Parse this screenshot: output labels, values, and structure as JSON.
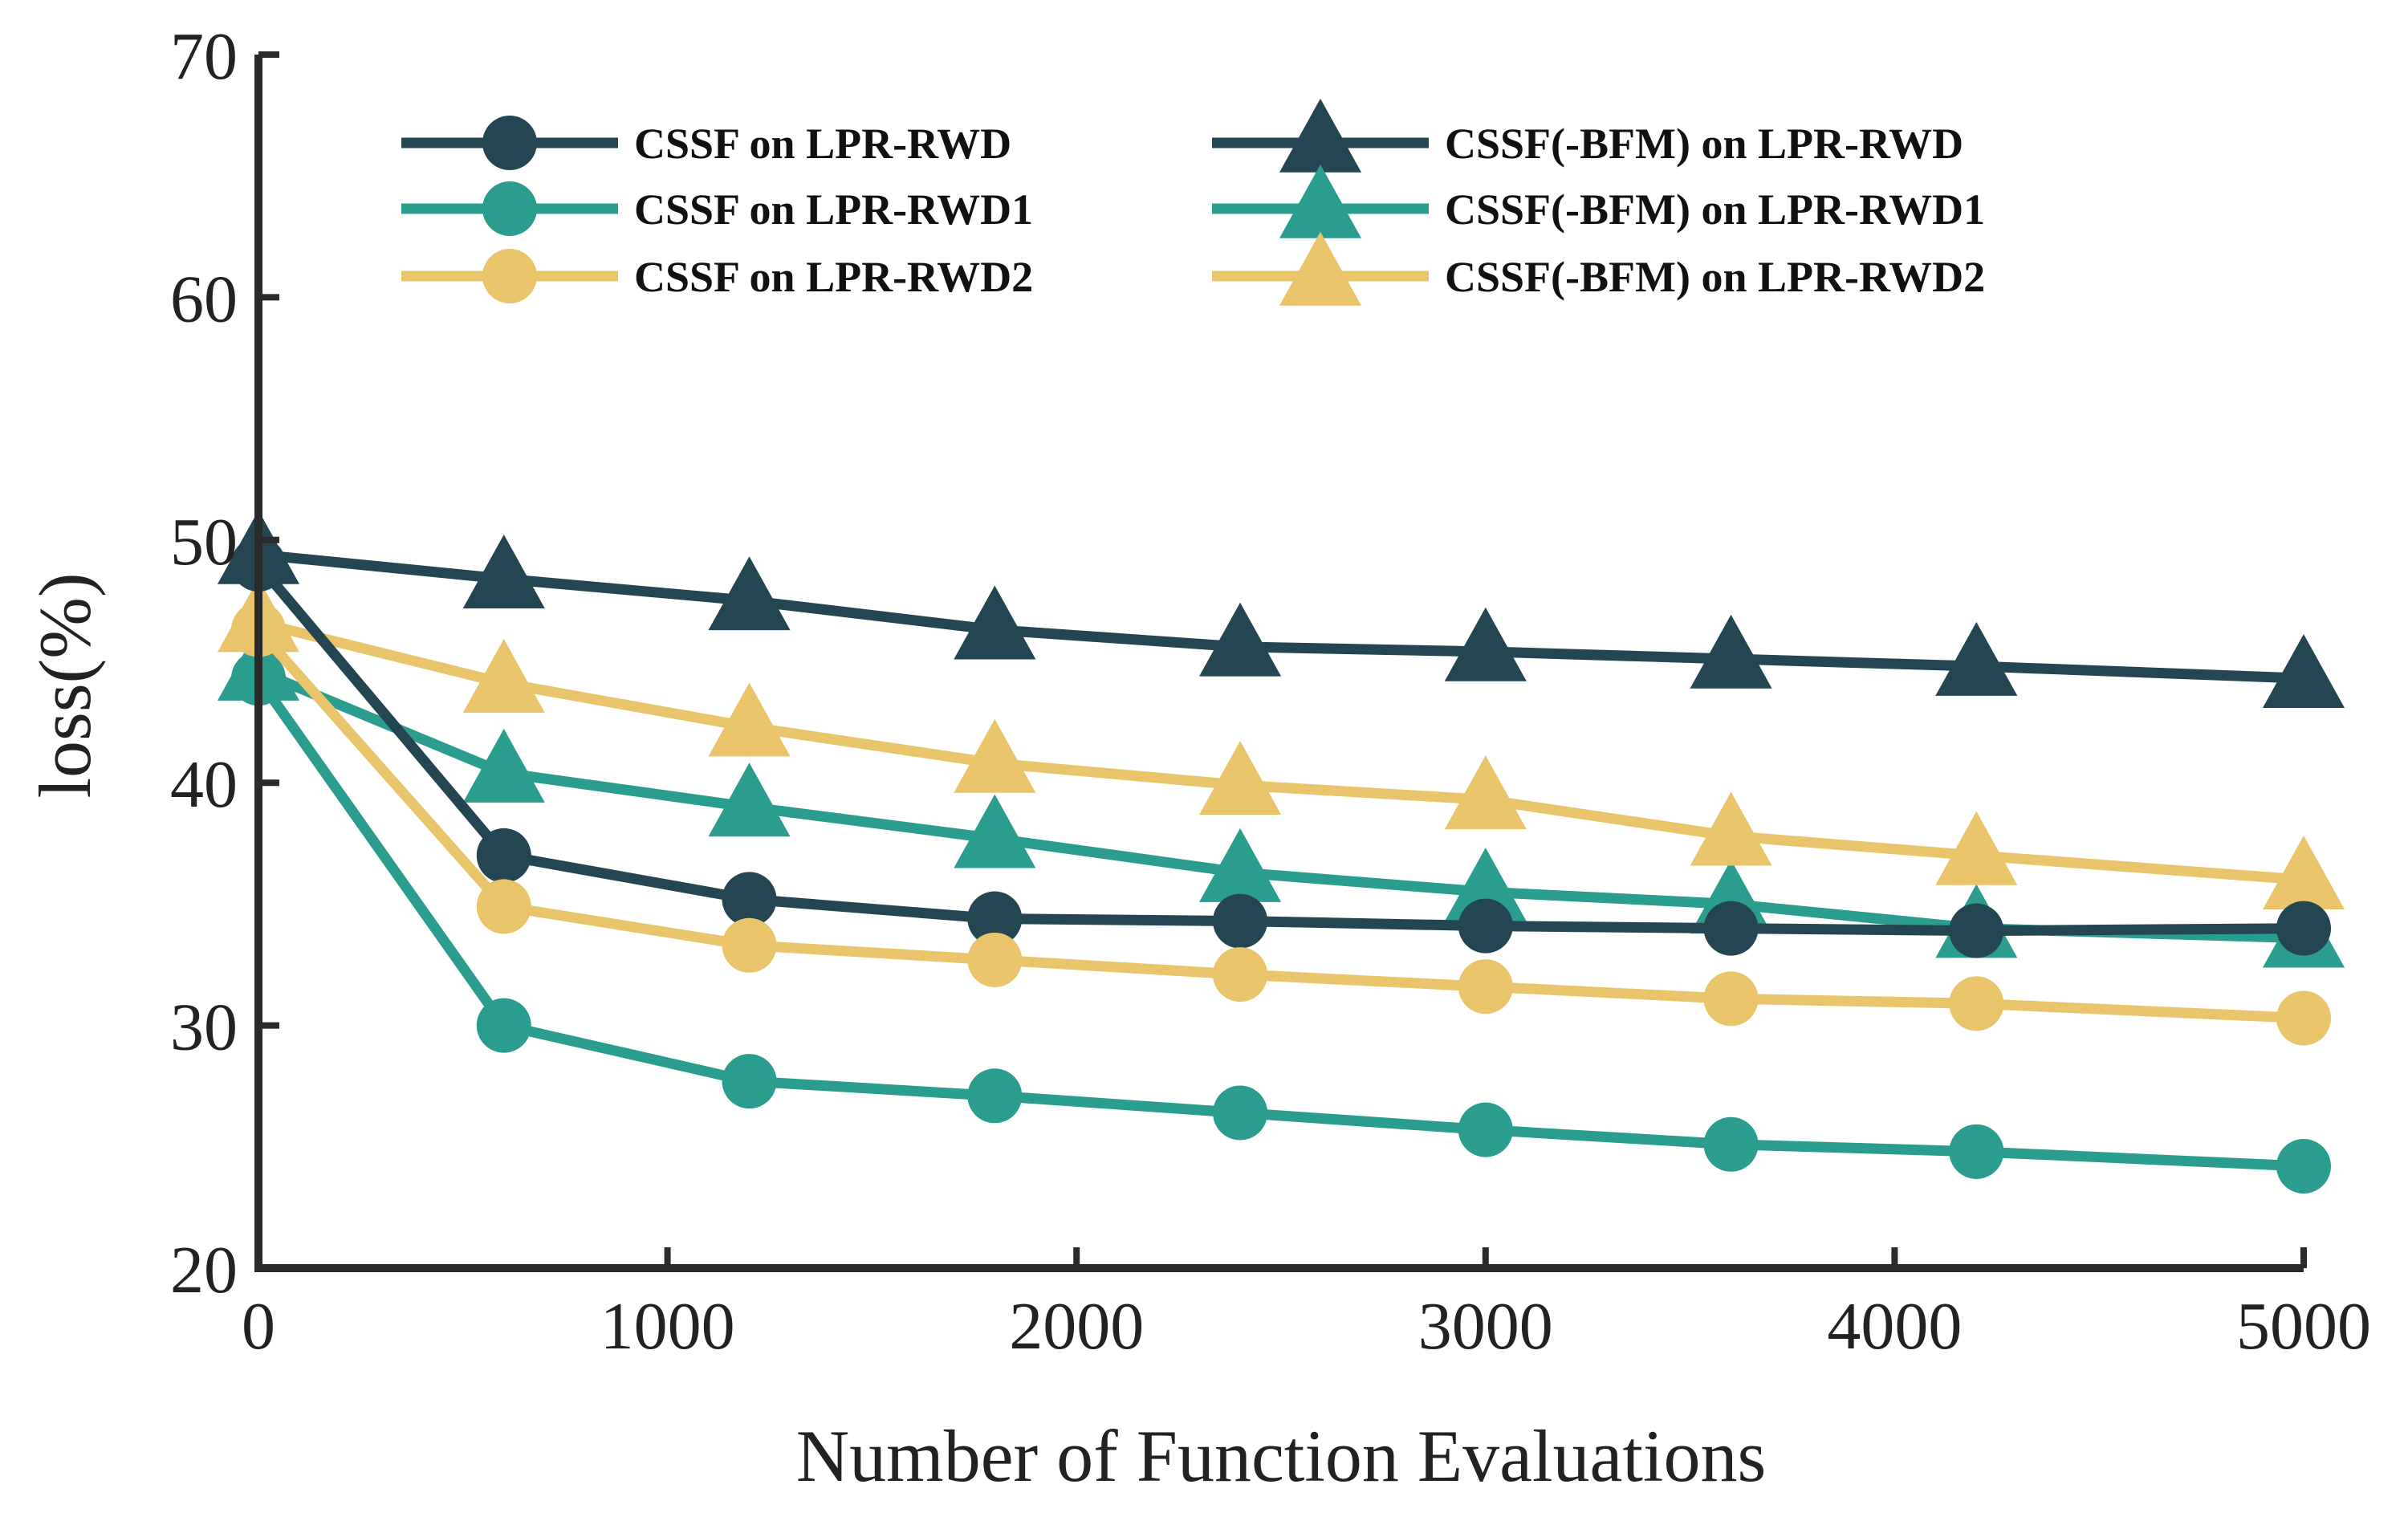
{
  "chart_data": {
    "type": "line",
    "title": "",
    "xlabel": "Number of Function Evaluations",
    "ylabel": "loss(%)",
    "xlim": [
      0,
      5000
    ],
    "ylim": [
      20,
      70
    ],
    "xticks": [
      0,
      1000,
      2000,
      3000,
      4000,
      5000
    ],
    "yticks": [
      20,
      30,
      40,
      50,
      60,
      70
    ],
    "x": [
      0,
      600,
      1200,
      1800,
      2400,
      3000,
      3600,
      4200,
      5000
    ],
    "legend_position": "top",
    "grid": false,
    "series": [
      {
        "name": "CSSF on LPR-RWD",
        "marker": "circle",
        "color": "#244653",
        "values": [
          49.0,
          37.0,
          35.2,
          34.4,
          34.3,
          34.1,
          34.0,
          33.9,
          34.0
        ]
      },
      {
        "name": "CSSF on LPR-RWD1",
        "marker": "circle",
        "color": "#2a9d8f",
        "values": [
          44.3,
          30.0,
          27.7,
          27.1,
          26.4,
          25.7,
          25.1,
          24.8,
          24.2
        ]
      },
      {
        "name": "CSSF on LPR-RWD2",
        "marker": "circle",
        "color": "#e9c46a",
        "values": [
          46.3,
          34.9,
          33.3,
          32.7,
          32.1,
          31.6,
          31.1,
          30.9,
          30.3
        ]
      },
      {
        "name": "CSSF(-BFM) on LPR-RWD",
        "marker": "triangle",
        "color": "#244653",
        "values": [
          49.4,
          48.4,
          47.5,
          46.3,
          45.6,
          45.4,
          45.1,
          44.8,
          44.3
        ]
      },
      {
        "name": "CSSF(-BFM) on LPR-RWD1",
        "marker": "triangle",
        "color": "#2a9d8f",
        "values": [
          44.6,
          40.4,
          39.0,
          37.7,
          36.3,
          35.5,
          35.0,
          34.0,
          33.6
        ]
      },
      {
        "name": "CSSF(-BFM) on LPR-RWD2",
        "marker": "triangle",
        "color": "#e9c46a",
        "values": [
          46.6,
          44.1,
          42.3,
          40.8,
          39.9,
          39.3,
          37.8,
          37.0,
          36.0
        ]
      }
    ]
  }
}
